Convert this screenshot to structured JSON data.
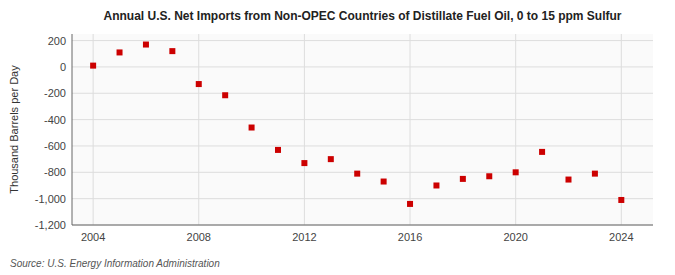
{
  "chart_data": {
    "type": "scatter",
    "title": "Annual U.S. Net Imports from Non-OPEC Countries of Distillate Fuel Oil, 0 to 15 ppm Sulfur",
    "ylabel": "Thousand Barrels per Day",
    "annotations": [
      "Source: U.S. Energy Information Administration"
    ],
    "x": [
      2004,
      2005,
      2006,
      2007,
      2008,
      2009,
      2010,
      2011,
      2012,
      2013,
      2014,
      2015,
      2016,
      2017,
      2018,
      2019,
      2020,
      2021,
      2022,
      2023,
      2024
    ],
    "values": [
      10,
      110,
      170,
      120,
      -130,
      -215,
      -460,
      -630,
      -730,
      -700,
      -810,
      -870,
      -1040,
      -900,
      -850,
      -830,
      -800,
      -645,
      -855,
      -810,
      -1010
    ],
    "color": "#cc0000",
    "marker": "square",
    "xlim": [
      2003.2,
      2025.2
    ],
    "ylim": [
      -1200,
      250
    ],
    "xticks": [
      2004,
      2008,
      2012,
      2016,
      2020,
      2024
    ],
    "yticks": [
      200,
      0,
      -200,
      -400,
      -600,
      -800,
      {
        "value": -1000,
        "label": "-1,000"
      },
      {
        "value": -1200,
        "label": "-1,200"
      }
    ],
    "grid": true
  }
}
